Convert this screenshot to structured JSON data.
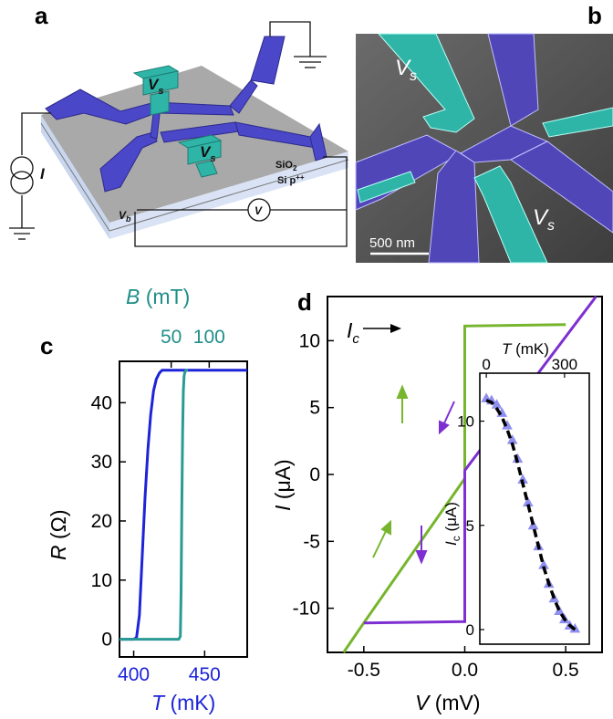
{
  "panels": {
    "a": {
      "label": "a",
      "layers": [
        "SiO",
        "2",
        "Si p",
        "++"
      ],
      "vs_label": [
        "V",
        "s"
      ],
      "vb_label": [
        "V",
        "b"
      ],
      "current_label": "I",
      "voltmeter_label": "V"
    },
    "b": {
      "label": "b",
      "vs_label": [
        "V",
        "s"
      ],
      "scale_bar": "500 nm"
    },
    "c": {
      "label": "c",
      "top_unit": "(mT)",
      "bottom_unit": "(mK)",
      "y_unit": "(Ω)"
    },
    "d": {
      "label": "d",
      "ic_label": [
        "I",
        "c"
      ]
    }
  },
  "colors": {
    "temperature_curve": "#1d24d8",
    "field_curve": "#2a9a94",
    "field_axis_text": "#1f8f88",
    "temp_axis_text": "#1d24d8",
    "forward_sweep": "#76b52d",
    "backward_sweep": "#7e2fd1",
    "inset_data": "#8f8ff0",
    "inset_fit": "#000000",
    "device_blue": "#4b47c9",
    "device_teal": "#2fb5a7"
  },
  "chart_data": [
    {
      "id": "c",
      "type": "line",
      "xlabel": "T",
      "x2label": "B",
      "ylabel": "R",
      "xlim": [
        390,
        480
      ],
      "x2lim": [
        -18,
        150
      ],
      "ylim": [
        -3,
        47
      ],
      "xticks": [
        400,
        450
      ],
      "x2ticks": [
        50,
        100
      ],
      "yticks": [
        0,
        10,
        20,
        30,
        40
      ],
      "series": [
        {
          "axis": "bottom",
          "x": [
            390,
            400,
            402,
            404,
            406,
            408,
            410,
            412,
            414,
            416,
            418,
            420,
            422,
            480
          ],
          "y": [
            0,
            0,
            0.3,
            4,
            14,
            24,
            32,
            38,
            42,
            44,
            45,
            45.5,
            45.5,
            45.5
          ]
        },
        {
          "axis": "top",
          "x": [
            -18,
            60,
            62,
            63,
            64,
            65,
            66,
            67,
            68,
            70,
            72
          ],
          "y": [
            0,
            0,
            0.5,
            8,
            22,
            35,
            42,
            44.5,
            45.2,
            45.5,
            45.5
          ]
        }
      ]
    },
    {
      "id": "d",
      "type": "line",
      "xlabel": "V",
      "ylabel": "I",
      "xlim": [
        -0.68,
        0.68
      ],
      "ylim": [
        -13.3,
        13.3
      ],
      "xticks": [
        -0.5,
        0.0,
        0.5
      ],
      "yticks": [
        -10,
        -5,
        0,
        5,
        10
      ],
      "series": [
        {
          "name": "up-sweep",
          "x": [
            -0.6,
            -0.5,
            0.0,
            0.0,
            0.5
          ],
          "y": [
            -13.3,
            -11.1,
            -0.3,
            11.1,
            11.2
          ]
        },
        {
          "name": "down-sweep",
          "x": [
            0.65,
            0.0,
            0.0,
            -0.5
          ],
          "y": [
            13.3,
            0.3,
            -11.0,
            -11.1
          ]
        }
      ]
    },
    {
      "id": "d-inset",
      "type": "scatter",
      "xlabel": "T",
      "ylabel": "I",
      "xlim": [
        -25,
        395
      ],
      "ylim": [
        -0.7,
        12.3
      ],
      "xticks": [
        0,
        300
      ],
      "yticks": [
        0,
        5,
        10
      ],
      "series": [
        {
          "name": "data",
          "x": [
            0,
            20,
            40,
            60,
            80,
            100,
            120,
            140,
            160,
            180,
            200,
            220,
            240,
            260,
            280,
            300,
            320,
            340
          ],
          "y": [
            11.1,
            11.0,
            10.8,
            10.4,
            9.8,
            9.1,
            8.2,
            7.2,
            6.1,
            5.0,
            4.0,
            3.1,
            2.2,
            1.5,
            0.9,
            0.5,
            0.2,
            0.05
          ]
        },
        {
          "name": "fit",
          "x": [
            0,
            20,
            40,
            60,
            80,
            100,
            120,
            140,
            160,
            180,
            200,
            220,
            240,
            260,
            280,
            300,
            320,
            340
          ],
          "y": [
            11.0,
            10.9,
            10.6,
            10.2,
            9.6,
            8.9,
            8.0,
            7.0,
            6.0,
            5.0,
            4.0,
            3.0,
            2.2,
            1.5,
            0.9,
            0.5,
            0.2,
            0.0
          ]
        }
      ]
    }
  ]
}
